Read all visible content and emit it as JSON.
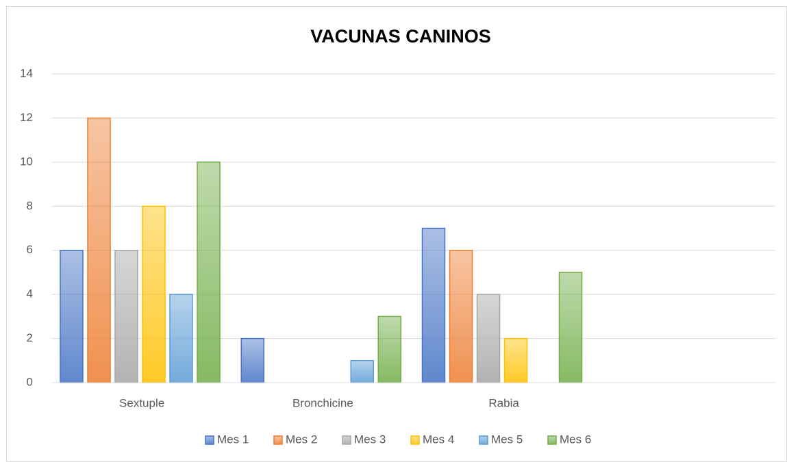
{
  "chart_data": {
    "type": "bar",
    "title": "VACUNAS CANINOS",
    "categories": [
      "Sextuple",
      "Bronchicine",
      "Rabia",
      null
    ],
    "series": [
      {
        "name": "Mes 1",
        "color": "#4472c4",
        "values": [
          6,
          2,
          7,
          null
        ]
      },
      {
        "name": "Mes 2",
        "color": "#ed7d31",
        "values": [
          12,
          0,
          6,
          null
        ]
      },
      {
        "name": "Mes 3",
        "color": "#a5a5a5",
        "values": [
          6,
          0,
          4,
          null
        ]
      },
      {
        "name": "Mes 4",
        "color": "#ffc000",
        "values": [
          8,
          0,
          2,
          null
        ]
      },
      {
        "name": "Mes 5",
        "color": "#5b9bd5",
        "values": [
          4,
          1,
          0,
          null
        ]
      },
      {
        "name": "Mes 6",
        "color": "#70ad47",
        "values": [
          10,
          3,
          5,
          null
        ]
      }
    ],
    "ylim": [
      0,
      14
    ],
    "yticks": [
      0,
      2,
      4,
      6,
      8,
      10,
      12,
      14
    ],
    "grid": true,
    "legend": "bottom"
  }
}
